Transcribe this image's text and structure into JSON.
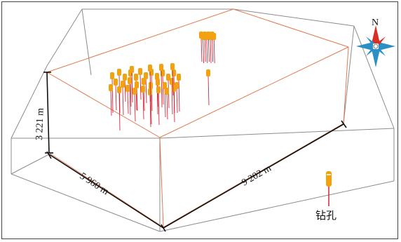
{
  "dimensions": {
    "height_label": "3 221 m",
    "width_label": "5 960 m",
    "length_label": "9 202 m"
  },
  "compass": {
    "north_label": "N",
    "icon": "compass-rose-icon"
  },
  "legend": {
    "label": "钻孔",
    "icon": "borehole-icon"
  },
  "colors": {
    "box_edges": "#8c8c8c",
    "model_edges": "#e07a4f",
    "borehole_head": "#f2a20f",
    "borehole_trace": "#d1283a",
    "compass_blue": "#2a8fc4",
    "compass_red": "#d93025"
  }
}
